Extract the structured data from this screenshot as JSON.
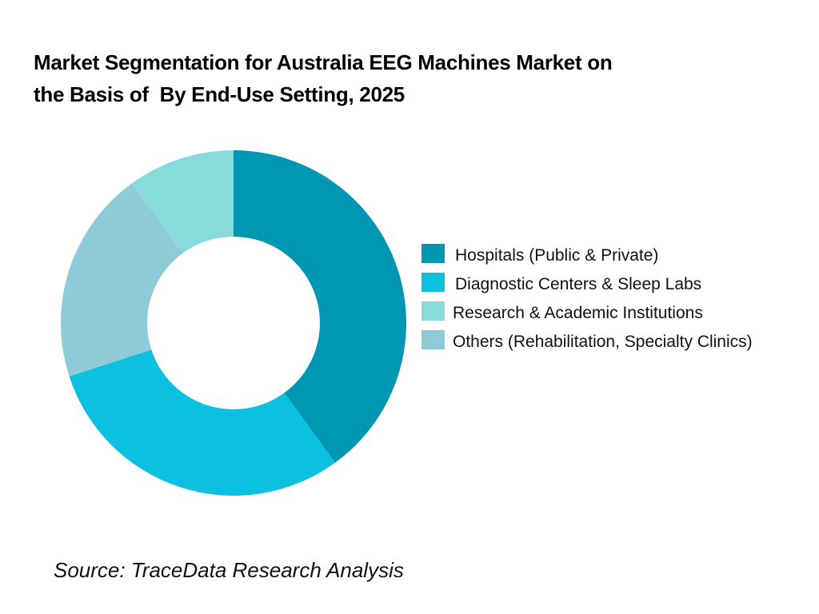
{
  "title": {
    "line1": "Market Segmentation for Australia EEG Machines Market on",
    "line2": "the Basis of  By End-Use Setting, 2025"
  },
  "source": "Source: TraceData Research Analysis",
  "legend": [
    {
      "label": "Hospitals (Public & Private)",
      "color": "#0097b2"
    },
    {
      "label": "Diagnostic Centers & Sleep Labs",
      "color": "#0cc0df"
    },
    {
      "label": "Research & Academic Institutions",
      "color": "#87dcdb"
    },
    {
      "label": "Others (Rehabilitation, Specialty Clinics)",
      "color": "#8ecbd9"
    }
  ],
  "chart_data": {
    "type": "pie",
    "variant": "donut",
    "title": "Market Segmentation for Australia EEG Machines Market on the Basis of  By End-Use Setting, 2025",
    "categories": [
      "Hospitals (Public & Private)",
      "Diagnostic Centers & Sleep Labs",
      "Others (Rehabilitation, Specialty Clinics)",
      "Research & Academic Institutions"
    ],
    "values": [
      40,
      30,
      20,
      10
    ],
    "unit": "%",
    "colors": [
      "#0097b2",
      "#0cc0df",
      "#8ecbd9",
      "#87dcdb"
    ],
    "start_angle": "12 o'clock, clockwise",
    "data_labels": false,
    "legend_position": "right",
    "source": "Source: TraceData Research Analysis"
  }
}
